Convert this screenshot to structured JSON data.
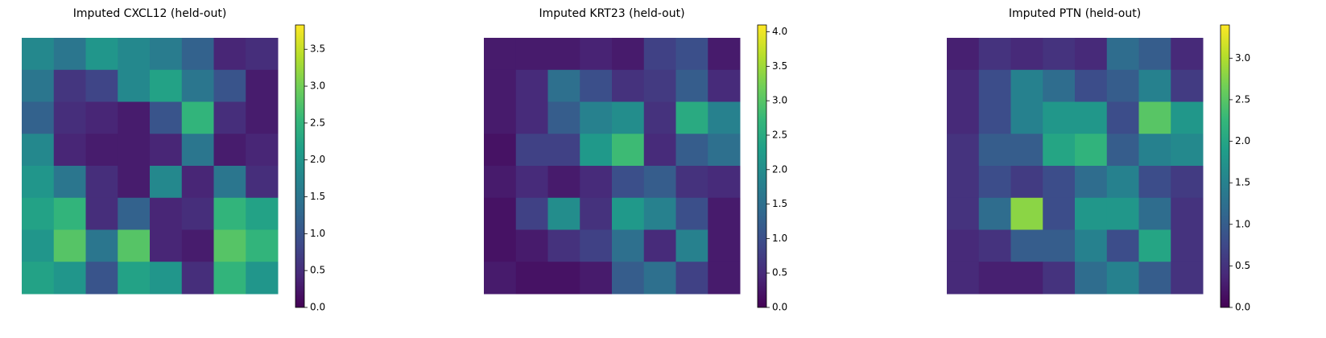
{
  "chart_data": [
    {
      "type": "heatmap",
      "title": "Imputed CXCL12 (held-out)",
      "colormap": "viridis",
      "clim": [
        0,
        3.83
      ],
      "cticks": [
        {
          "value": 0,
          "label": "0.0"
        },
        {
          "value": 0.5,
          "label": "0.5"
        },
        {
          "value": 1,
          "label": "1.0"
        },
        {
          "value": 1.5,
          "label": "1.5"
        },
        {
          "value": 2,
          "label": "2.0"
        },
        {
          "value": 2.5,
          "label": "2.5"
        },
        {
          "value": 3,
          "label": "3.0"
        },
        {
          "value": 3.5,
          "label": "3.5"
        }
      ],
      "z": [
        [
          1.8,
          1.5,
          2.0,
          1.8,
          1.6,
          1.2,
          0.4,
          0.5
        ],
        [
          1.5,
          0.6,
          0.8,
          1.8,
          2.2,
          1.5,
          1.0,
          0.3
        ],
        [
          1.2,
          0.5,
          0.4,
          0.3,
          1.0,
          2.5,
          0.5,
          0.3
        ],
        [
          1.8,
          0.4,
          0.3,
          0.3,
          0.4,
          1.5,
          0.3,
          0.4
        ],
        [
          2.0,
          1.5,
          0.5,
          0.3,
          1.8,
          0.4,
          1.5,
          0.5
        ],
        [
          2.2,
          2.5,
          0.5,
          1.2,
          0.4,
          0.5,
          2.5,
          2.2
        ],
        [
          2.0,
          2.8,
          1.5,
          2.8,
          0.4,
          0.3,
          2.8,
          2.5
        ],
        [
          2.2,
          2.0,
          1.0,
          2.2,
          2.0,
          0.5,
          2.5,
          2.0
        ]
      ]
    },
    {
      "type": "heatmap",
      "title": "Imputed KRT23 (held-out)",
      "colormap": "viridis",
      "clim": [
        0,
        4.1
      ],
      "cticks": [
        {
          "value": 0,
          "label": "0.0"
        },
        {
          "value": 0.5,
          "label": "0.5"
        },
        {
          "value": 1,
          "label": "1.0"
        },
        {
          "value": 1.5,
          "label": "1.5"
        },
        {
          "value": 2,
          "label": "2.0"
        },
        {
          "value": 2.5,
          "label": "2.5"
        },
        {
          "value": 3,
          "label": "3.0"
        },
        {
          "value": 3.5,
          "label": "3.5"
        },
        {
          "value": 4,
          "label": "4.0"
        }
      ],
      "z": [
        [
          0.3,
          0.3,
          0.3,
          0.4,
          0.3,
          0.8,
          1.0,
          0.3
        ],
        [
          0.3,
          0.5,
          1.5,
          1.0,
          0.6,
          0.7,
          1.2,
          0.5
        ],
        [
          0.3,
          0.5,
          1.2,
          1.8,
          2.0,
          0.6,
          2.5,
          1.8
        ],
        [
          0.2,
          0.8,
          0.8,
          2.2,
          2.8,
          0.5,
          1.2,
          1.5
        ],
        [
          0.3,
          0.5,
          0.3,
          0.5,
          1.0,
          1.2,
          0.6,
          0.5
        ],
        [
          0.2,
          0.8,
          2.0,
          0.6,
          2.2,
          1.8,
          1.0,
          0.3
        ],
        [
          0.2,
          0.3,
          0.6,
          0.8,
          1.5,
          0.5,
          1.8,
          0.3
        ],
        [
          0.3,
          0.2,
          0.2,
          0.3,
          1.2,
          1.5,
          0.8,
          0.3
        ]
      ]
    },
    {
      "type": "heatmap",
      "title": "Imputed PTN (held-out)",
      "colormap": "viridis",
      "clim": [
        0,
        3.4
      ],
      "cticks": [
        {
          "value": 0,
          "label": "0.0"
        },
        {
          "value": 0.5,
          "label": "0.5"
        },
        {
          "value": 1,
          "label": "1.0"
        },
        {
          "value": 1.5,
          "label": "1.5"
        },
        {
          "value": 2,
          "label": "2.0"
        },
        {
          "value": 2.5,
          "label": "2.5"
        },
        {
          "value": 3,
          "label": "3.0"
        }
      ],
      "z": [
        [
          0.3,
          0.5,
          0.4,
          0.5,
          0.4,
          1.2,
          1.0,
          0.4
        ],
        [
          0.4,
          0.8,
          1.5,
          1.2,
          0.8,
          1.0,
          1.5,
          0.6
        ],
        [
          0.4,
          0.8,
          1.5,
          1.8,
          1.8,
          0.8,
          2.5,
          1.8
        ],
        [
          0.5,
          1.0,
          1.0,
          2.0,
          2.2,
          1.0,
          1.5,
          1.6
        ],
        [
          0.5,
          0.8,
          0.6,
          0.8,
          1.2,
          1.5,
          0.8,
          0.6
        ],
        [
          0.5,
          1.2,
          2.8,
          0.8,
          1.8,
          1.8,
          1.2,
          0.5
        ],
        [
          0.4,
          0.5,
          1.0,
          1.0,
          1.5,
          0.8,
          2.0,
          0.5
        ],
        [
          0.4,
          0.3,
          0.3,
          0.5,
          1.2,
          1.5,
          1.0,
          0.5
        ]
      ]
    }
  ]
}
